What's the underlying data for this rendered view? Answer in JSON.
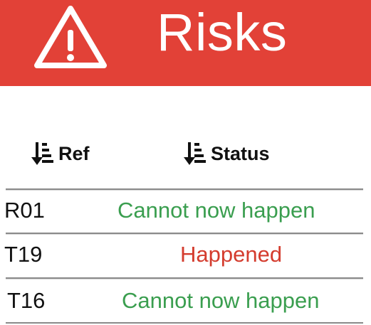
{
  "header": {
    "title": "Risks",
    "icon": "warning-triangle-icon",
    "background_color": "#e24137"
  },
  "table": {
    "columns": [
      {
        "label": "Ref",
        "icon": "sort-descending-icon"
      },
      {
        "label": "Status",
        "icon": "sort-descending-icon"
      }
    ],
    "rows": [
      {
        "ref": "R01",
        "status": "Cannot now happen",
        "status_color": "#3a9e4f"
      },
      {
        "ref": "T19",
        "status": "Happened",
        "status_color": "#d43c2e"
      },
      {
        "ref": "T16",
        "status": "Cannot now happen",
        "status_color": "#3a9e4f"
      }
    ]
  }
}
